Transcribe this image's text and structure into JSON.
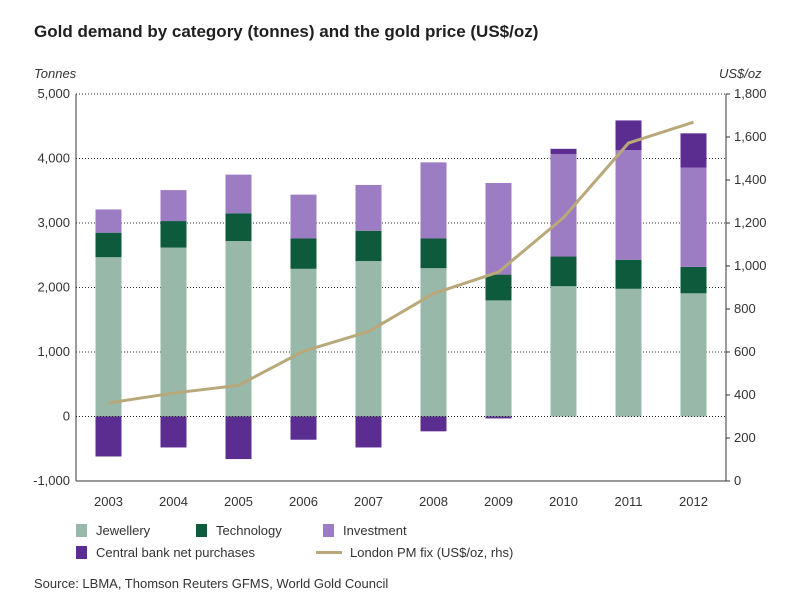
{
  "title": "Gold demand by category (tonnes) and the gold price (US$/oz)",
  "source": "Source: LBMA, Thomson Reuters GFMS, World Gold Council",
  "colors": {
    "jewellery": "#98b8a9",
    "technology": "#0d5a3c",
    "investment": "#9c7cc3",
    "central_bank": "#5b2d91",
    "price_line": "#b9a87a",
    "grid": "#333333"
  },
  "chart_data": {
    "type": "bar",
    "stacked": true,
    "categories": [
      "2003",
      "2004",
      "2005",
      "2006",
      "2007",
      "2008",
      "2009",
      "2010",
      "2011",
      "2012"
    ],
    "series": [
      {
        "name": "Jewellery",
        "axis": "left",
        "values": [
          2470,
          2620,
          2720,
          2290,
          2410,
          2300,
          1800,
          2020,
          1980,
          1910
        ]
      },
      {
        "name": "Technology",
        "axis": "left",
        "values": [
          380,
          410,
          430,
          470,
          470,
          460,
          400,
          460,
          450,
          410
        ]
      },
      {
        "name": "Investment",
        "axis": "left",
        "values": [
          360,
          480,
          600,
          680,
          710,
          1180,
          1420,
          1590,
          1700,
          1540
        ]
      },
      {
        "name": "Central bank net purchases",
        "axis": "left",
        "values": [
          -620,
          -480,
          -660,
          -360,
          -480,
          -230,
          -30,
          80,
          460,
          530
        ]
      },
      {
        "name": "London PM fix (US$/oz, rhs)",
        "axis": "right",
        "type": "line",
        "values": [
          363,
          409,
          445,
          604,
          695,
          872,
          972,
          1225,
          1572,
          1669
        ]
      }
    ],
    "ylabel": "Tonnes",
    "y2label": "US$/oz",
    "ylim": [
      -1000,
      5000
    ],
    "y2lim": [
      0,
      1800
    ],
    "yticks": [
      "-1,000",
      "0",
      "1,000",
      "2,000",
      "3,000",
      "4,000",
      "5,000"
    ],
    "y2ticks": [
      "0",
      "200",
      "400",
      "600",
      "800",
      "1,000",
      "1,200",
      "1,400",
      "1,600",
      "1,800"
    ],
    "grid": "dotted horizontal",
    "legend_position": "bottom"
  }
}
